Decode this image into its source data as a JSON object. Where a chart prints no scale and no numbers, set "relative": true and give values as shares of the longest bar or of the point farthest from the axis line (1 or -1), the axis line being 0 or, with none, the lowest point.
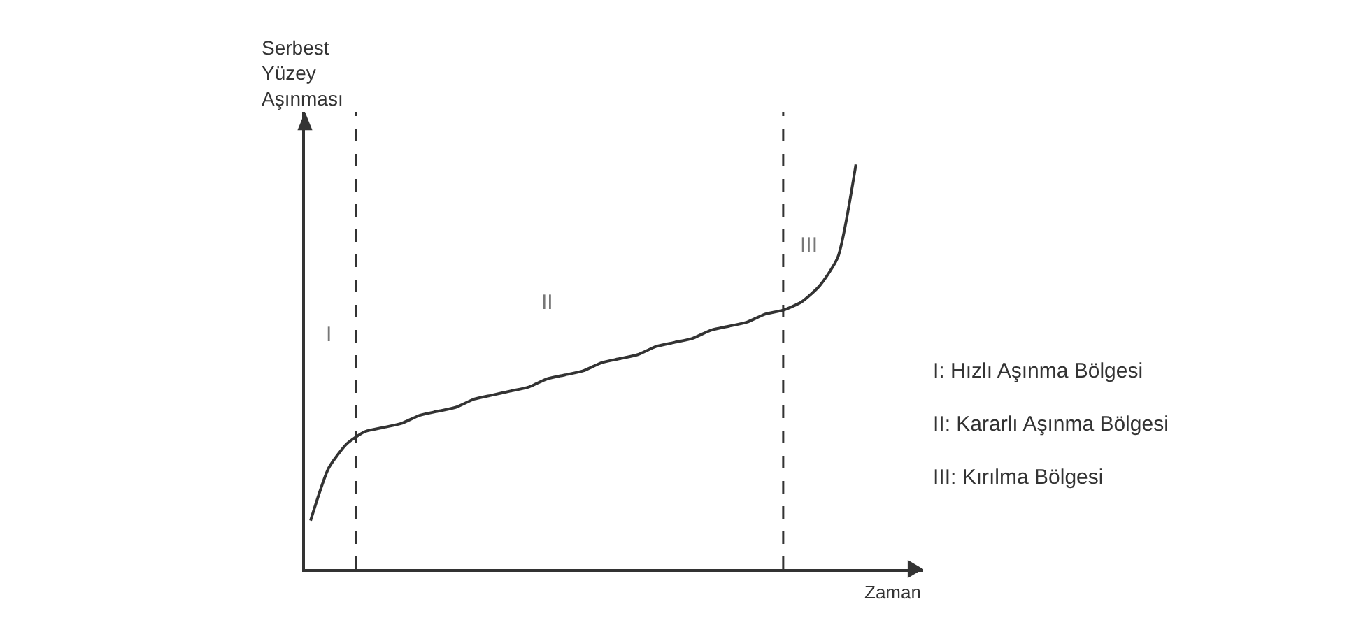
{
  "chart_data": {
    "type": "line",
    "relative": true,
    "xlabel": "Zaman",
    "ylabel": "Serbest Yüzey Aşınması",
    "categories": [
      null,
      null,
      null,
      null,
      null,
      null,
      null,
      null,
      null,
      null,
      null,
      null,
      null,
      null,
      null,
      null,
      null,
      null,
      null,
      null,
      null,
      null,
      null,
      null,
      null,
      null,
      null,
      null,
      null,
      null,
      null,
      null,
      null,
      null
    ],
    "series": [
      {
        "color": "#333333",
        "values": [
          0.12,
          0.25,
          0.31,
          0.34,
          0.35,
          0.36,
          0.38,
          0.39,
          0.4,
          0.42,
          0.43,
          0.44,
          0.45,
          0.47,
          0.48,
          0.49,
          0.51,
          0.52,
          0.53,
          0.55,
          0.56,
          0.57,
          0.59,
          0.6,
          0.61,
          0.63,
          0.64,
          0.66,
          0.7,
          0.77,
          1.0,
          null,
          null,
          null
        ]
      }
    ],
    "annotations": [
      "I",
      "II",
      "III",
      "I: Hızlı Aşınma Bölgesi",
      "II: Kararlı Aşınma Bölgesi",
      "III: Kırılma Bölgesi"
    ],
    "legend": false,
    "marker": "none",
    "line_style": "solid"
  }
}
